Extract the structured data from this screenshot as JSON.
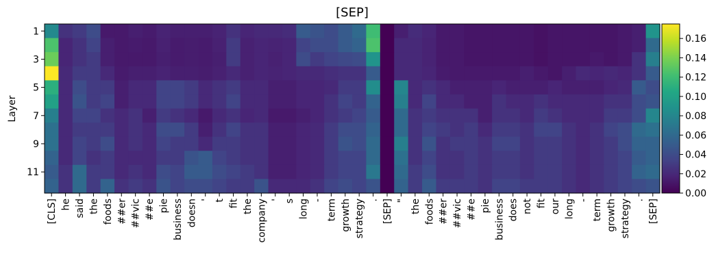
{
  "chart_data": {
    "type": "heatmap",
    "title": "[SEP]",
    "ylabel": "Layer",
    "xlabel": "",
    "y_tick_labels": [
      "1",
      "3",
      "5",
      "7",
      "9",
      "11"
    ],
    "x_tokens": [
      "[CLS]",
      "he",
      "said",
      "the",
      "foods",
      "##er",
      "##vic",
      "##e",
      "pie",
      "business",
      "doesn",
      "'",
      "t",
      "fit",
      "the",
      "company",
      "'",
      "s",
      "long",
      "-",
      "term",
      "growth",
      "strategy",
      ".",
      "[SEP]",
      "\"",
      "the",
      "foods",
      "##er",
      "##vic",
      "##e",
      "pie",
      "business",
      "does",
      "not",
      "fit",
      "our",
      "long",
      "-",
      "term",
      "growth",
      "strategy",
      ".",
      "[SEP]"
    ],
    "rows": 12,
    "colorbar": {
      "min": 0.0,
      "max": 0.175,
      "ticks": [
        "0.00",
        "0.02",
        "0.04",
        "0.06",
        "0.08",
        "0.10",
        "0.12",
        "0.14",
        "0.16"
      ],
      "colormap": "viridis"
    },
    "values": [
      [
        0.082,
        0.025,
        0.03,
        0.04,
        0.012,
        0.012,
        0.015,
        0.013,
        0.017,
        0.015,
        0.015,
        0.015,
        0.017,
        0.025,
        0.018,
        0.02,
        0.02,
        0.022,
        0.05,
        0.045,
        0.04,
        0.05,
        0.06,
        0.12,
        0.0,
        0.015,
        0.022,
        0.018,
        0.012,
        0.012,
        0.01,
        0.01,
        0.01,
        0.01,
        0.01,
        0.008,
        0.01,
        0.01,
        0.01,
        0.01,
        0.01,
        0.012,
        0.015,
        0.09
      ],
      [
        0.125,
        0.018,
        0.025,
        0.035,
        0.015,
        0.012,
        0.013,
        0.012,
        0.016,
        0.013,
        0.014,
        0.013,
        0.016,
        0.03,
        0.016,
        0.018,
        0.017,
        0.018,
        0.035,
        0.04,
        0.04,
        0.05,
        0.055,
        0.125,
        0.0,
        0.02,
        0.02,
        0.017,
        0.012,
        0.012,
        0.01,
        0.01,
        0.01,
        0.01,
        0.01,
        0.008,
        0.01,
        0.01,
        0.01,
        0.01,
        0.01,
        0.012,
        0.015,
        0.06
      ],
      [
        0.135,
        0.018,
        0.025,
        0.03,
        0.015,
        0.012,
        0.012,
        0.012,
        0.015,
        0.013,
        0.014,
        0.013,
        0.015,
        0.03,
        0.016,
        0.018,
        0.016,
        0.018,
        0.04,
        0.03,
        0.035,
        0.038,
        0.04,
        0.09,
        0.0,
        0.02,
        0.02,
        0.017,
        0.012,
        0.012,
        0.01,
        0.01,
        0.01,
        0.01,
        0.01,
        0.008,
        0.01,
        0.01,
        0.01,
        0.012,
        0.01,
        0.012,
        0.025,
        0.075
      ],
      [
        0.175,
        0.02,
        0.03,
        0.03,
        0.02,
        0.013,
        0.015,
        0.015,
        0.017,
        0.015,
        0.015,
        0.014,
        0.016,
        0.02,
        0.016,
        0.018,
        0.017,
        0.018,
        0.02,
        0.02,
        0.023,
        0.025,
        0.025,
        0.05,
        0.0,
        0.02,
        0.02,
        0.018,
        0.013,
        0.012,
        0.012,
        0.012,
        0.012,
        0.012,
        0.015,
        0.012,
        0.01,
        0.015,
        0.02,
        0.018,
        0.02,
        0.018,
        0.025,
        0.05
      ],
      [
        0.11,
        0.02,
        0.04,
        0.03,
        0.03,
        0.015,
        0.02,
        0.02,
        0.035,
        0.035,
        0.03,
        0.02,
        0.025,
        0.03,
        0.02,
        0.02,
        0.015,
        0.015,
        0.018,
        0.018,
        0.02,
        0.03,
        0.03,
        0.085,
        0.0,
        0.08,
        0.02,
        0.025,
        0.02,
        0.015,
        0.015,
        0.015,
        0.018,
        0.015,
        0.015,
        0.015,
        0.018,
        0.015,
        0.015,
        0.015,
        0.018,
        0.02,
        0.05,
        0.04
      ],
      [
        0.1,
        0.02,
        0.045,
        0.03,
        0.035,
        0.015,
        0.02,
        0.02,
        0.035,
        0.035,
        0.03,
        0.02,
        0.025,
        0.035,
        0.02,
        0.02,
        0.015,
        0.015,
        0.018,
        0.018,
        0.025,
        0.035,
        0.03,
        0.055,
        0.0,
        0.075,
        0.02,
        0.035,
        0.02,
        0.02,
        0.015,
        0.015,
        0.025,
        0.02,
        0.02,
        0.025,
        0.02,
        0.02,
        0.02,
        0.02,
        0.025,
        0.025,
        0.04,
        0.045
      ],
      [
        0.075,
        0.02,
        0.035,
        0.035,
        0.025,
        0.02,
        0.025,
        0.015,
        0.03,
        0.025,
        0.02,
        0.012,
        0.02,
        0.025,
        0.018,
        0.02,
        0.012,
        0.012,
        0.015,
        0.018,
        0.025,
        0.03,
        0.035,
        0.05,
        0.0,
        0.06,
        0.025,
        0.03,
        0.025,
        0.025,
        0.025,
        0.015,
        0.025,
        0.025,
        0.02,
        0.03,
        0.025,
        0.02,
        0.02,
        0.02,
        0.03,
        0.03,
        0.04,
        0.08
      ],
      [
        0.065,
        0.02,
        0.03,
        0.03,
        0.03,
        0.02,
        0.025,
        0.02,
        0.04,
        0.04,
        0.03,
        0.015,
        0.025,
        0.035,
        0.025,
        0.025,
        0.015,
        0.015,
        0.018,
        0.02,
        0.03,
        0.04,
        0.04,
        0.055,
        0.0,
        0.06,
        0.025,
        0.035,
        0.03,
        0.025,
        0.03,
        0.02,
        0.03,
        0.03,
        0.025,
        0.035,
        0.035,
        0.025,
        0.02,
        0.025,
        0.035,
        0.04,
        0.06,
        0.065
      ],
      [
        0.065,
        0.02,
        0.035,
        0.03,
        0.04,
        0.02,
        0.025,
        0.02,
        0.035,
        0.03,
        0.03,
        0.02,
        0.03,
        0.03,
        0.025,
        0.025,
        0.015,
        0.015,
        0.018,
        0.02,
        0.03,
        0.045,
        0.04,
        0.06,
        0.0,
        0.075,
        0.025,
        0.045,
        0.025,
        0.03,
        0.03,
        0.025,
        0.035,
        0.035,
        0.025,
        0.03,
        0.03,
        0.025,
        0.02,
        0.025,
        0.03,
        0.04,
        0.055,
        0.055
      ],
      [
        0.055,
        0.02,
        0.035,
        0.025,
        0.03,
        0.02,
        0.02,
        0.02,
        0.03,
        0.03,
        0.045,
        0.05,
        0.035,
        0.03,
        0.025,
        0.025,
        0.015,
        0.015,
        0.018,
        0.02,
        0.03,
        0.035,
        0.035,
        0.06,
        0.0,
        0.065,
        0.025,
        0.035,
        0.025,
        0.025,
        0.03,
        0.025,
        0.03,
        0.03,
        0.025,
        0.03,
        0.03,
        0.025,
        0.02,
        0.025,
        0.03,
        0.035,
        0.05,
        0.055
      ],
      [
        0.05,
        0.025,
        0.06,
        0.03,
        0.03,
        0.02,
        0.025,
        0.02,
        0.04,
        0.035,
        0.05,
        0.05,
        0.04,
        0.035,
        0.03,
        0.025,
        0.015,
        0.015,
        0.018,
        0.02,
        0.03,
        0.035,
        0.035,
        0.07,
        0.0,
        0.06,
        0.03,
        0.04,
        0.025,
        0.025,
        0.03,
        0.025,
        0.03,
        0.03,
        0.025,
        0.03,
        0.03,
        0.025,
        0.02,
        0.025,
        0.03,
        0.035,
        0.055,
        0.06
      ],
      [
        0.055,
        0.025,
        0.06,
        0.03,
        0.055,
        0.025,
        0.03,
        0.025,
        0.045,
        0.035,
        0.04,
        0.04,
        0.035,
        0.03,
        0.03,
        0.045,
        0.02,
        0.02,
        0.02,
        0.025,
        0.035,
        0.04,
        0.035,
        0.045,
        0.0,
        0.055,
        0.03,
        0.05,
        0.03,
        0.03,
        0.03,
        0.025,
        0.035,
        0.035,
        0.03,
        0.03,
        0.03,
        0.025,
        0.02,
        0.025,
        0.03,
        0.035,
        0.04,
        0.045
      ]
    ]
  }
}
